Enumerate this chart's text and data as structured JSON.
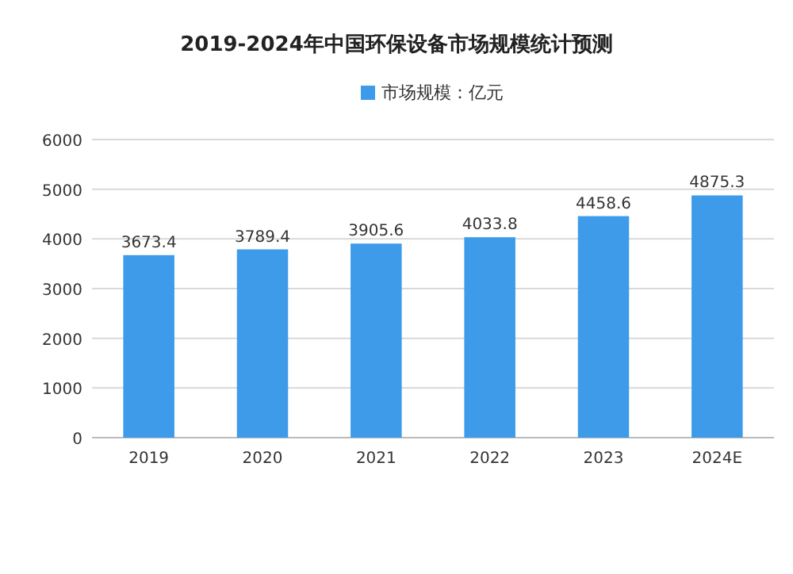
{
  "chart_data": {
    "type": "bar",
    "title": "2019-2024年中国环保设备市场规模统计预测",
    "categories": [
      "2019",
      "2020",
      "2021",
      "2022",
      "2023",
      "2024E"
    ],
    "series": [
      {
        "name": "市场规模：亿元",
        "color": "#3d9be9",
        "values": [
          3673.4,
          3789.4,
          3905.6,
          4033.8,
          4458.6,
          4875.3
        ]
      }
    ],
    "ylim": [
      0,
      6000
    ],
    "yticks": [
      0,
      1000,
      2000,
      3000,
      4000,
      5000,
      6000
    ],
    "grid": "y",
    "legend": "top",
    "data_labels": true
  }
}
